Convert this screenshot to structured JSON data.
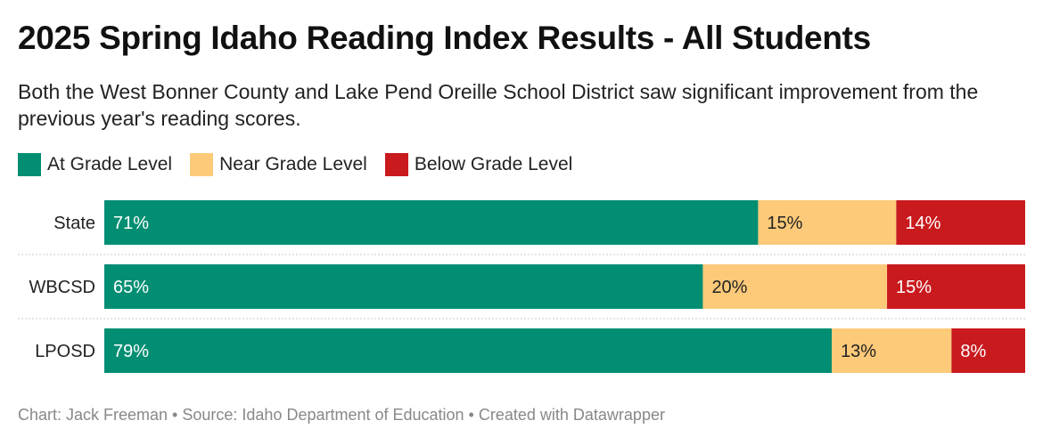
{
  "title": "2025 Spring Idaho Reading Index Results - All Students",
  "subtitle": "Both the West Bonner County and Lake Pend Oreille School District saw significant improvement from the previous year's reading scores.",
  "legend": [
    {
      "label": "At Grade Level",
      "color": "#018e72"
    },
    {
      "label": "Near Grade Level",
      "color": "#fdca7a"
    },
    {
      "label": "Below Grade Level",
      "color": "#c91a1e"
    }
  ],
  "footer": "Chart: Jack Freeman • Source: Idaho Department of Education • Created with Datawrapper",
  "chart_data": {
    "type": "bar",
    "orientation": "horizontal",
    "stacked": true,
    "categories": [
      "State",
      "WBCSD",
      "LPOSD"
    ],
    "series": [
      {
        "name": "At Grade Level",
        "values": [
          71,
          65,
          79
        ],
        "labels": [
          "71%",
          "65%",
          "79%"
        ],
        "color": "#018e72",
        "label_color": "#ffffff"
      },
      {
        "name": "Near Grade Level",
        "values": [
          15,
          20,
          13
        ],
        "labels": [
          "15%",
          "20%",
          "13%"
        ],
        "color": "#fdca7a",
        "label_color": "#222222"
      },
      {
        "name": "Below Grade Level",
        "values": [
          14,
          15,
          8
        ],
        "labels": [
          "14%",
          "15%",
          "8%"
        ],
        "color": "#c91a1e",
        "label_color": "#ffffff"
      }
    ],
    "xlim": [
      0,
      100
    ],
    "legend_position": "top-left",
    "grid": false
  }
}
